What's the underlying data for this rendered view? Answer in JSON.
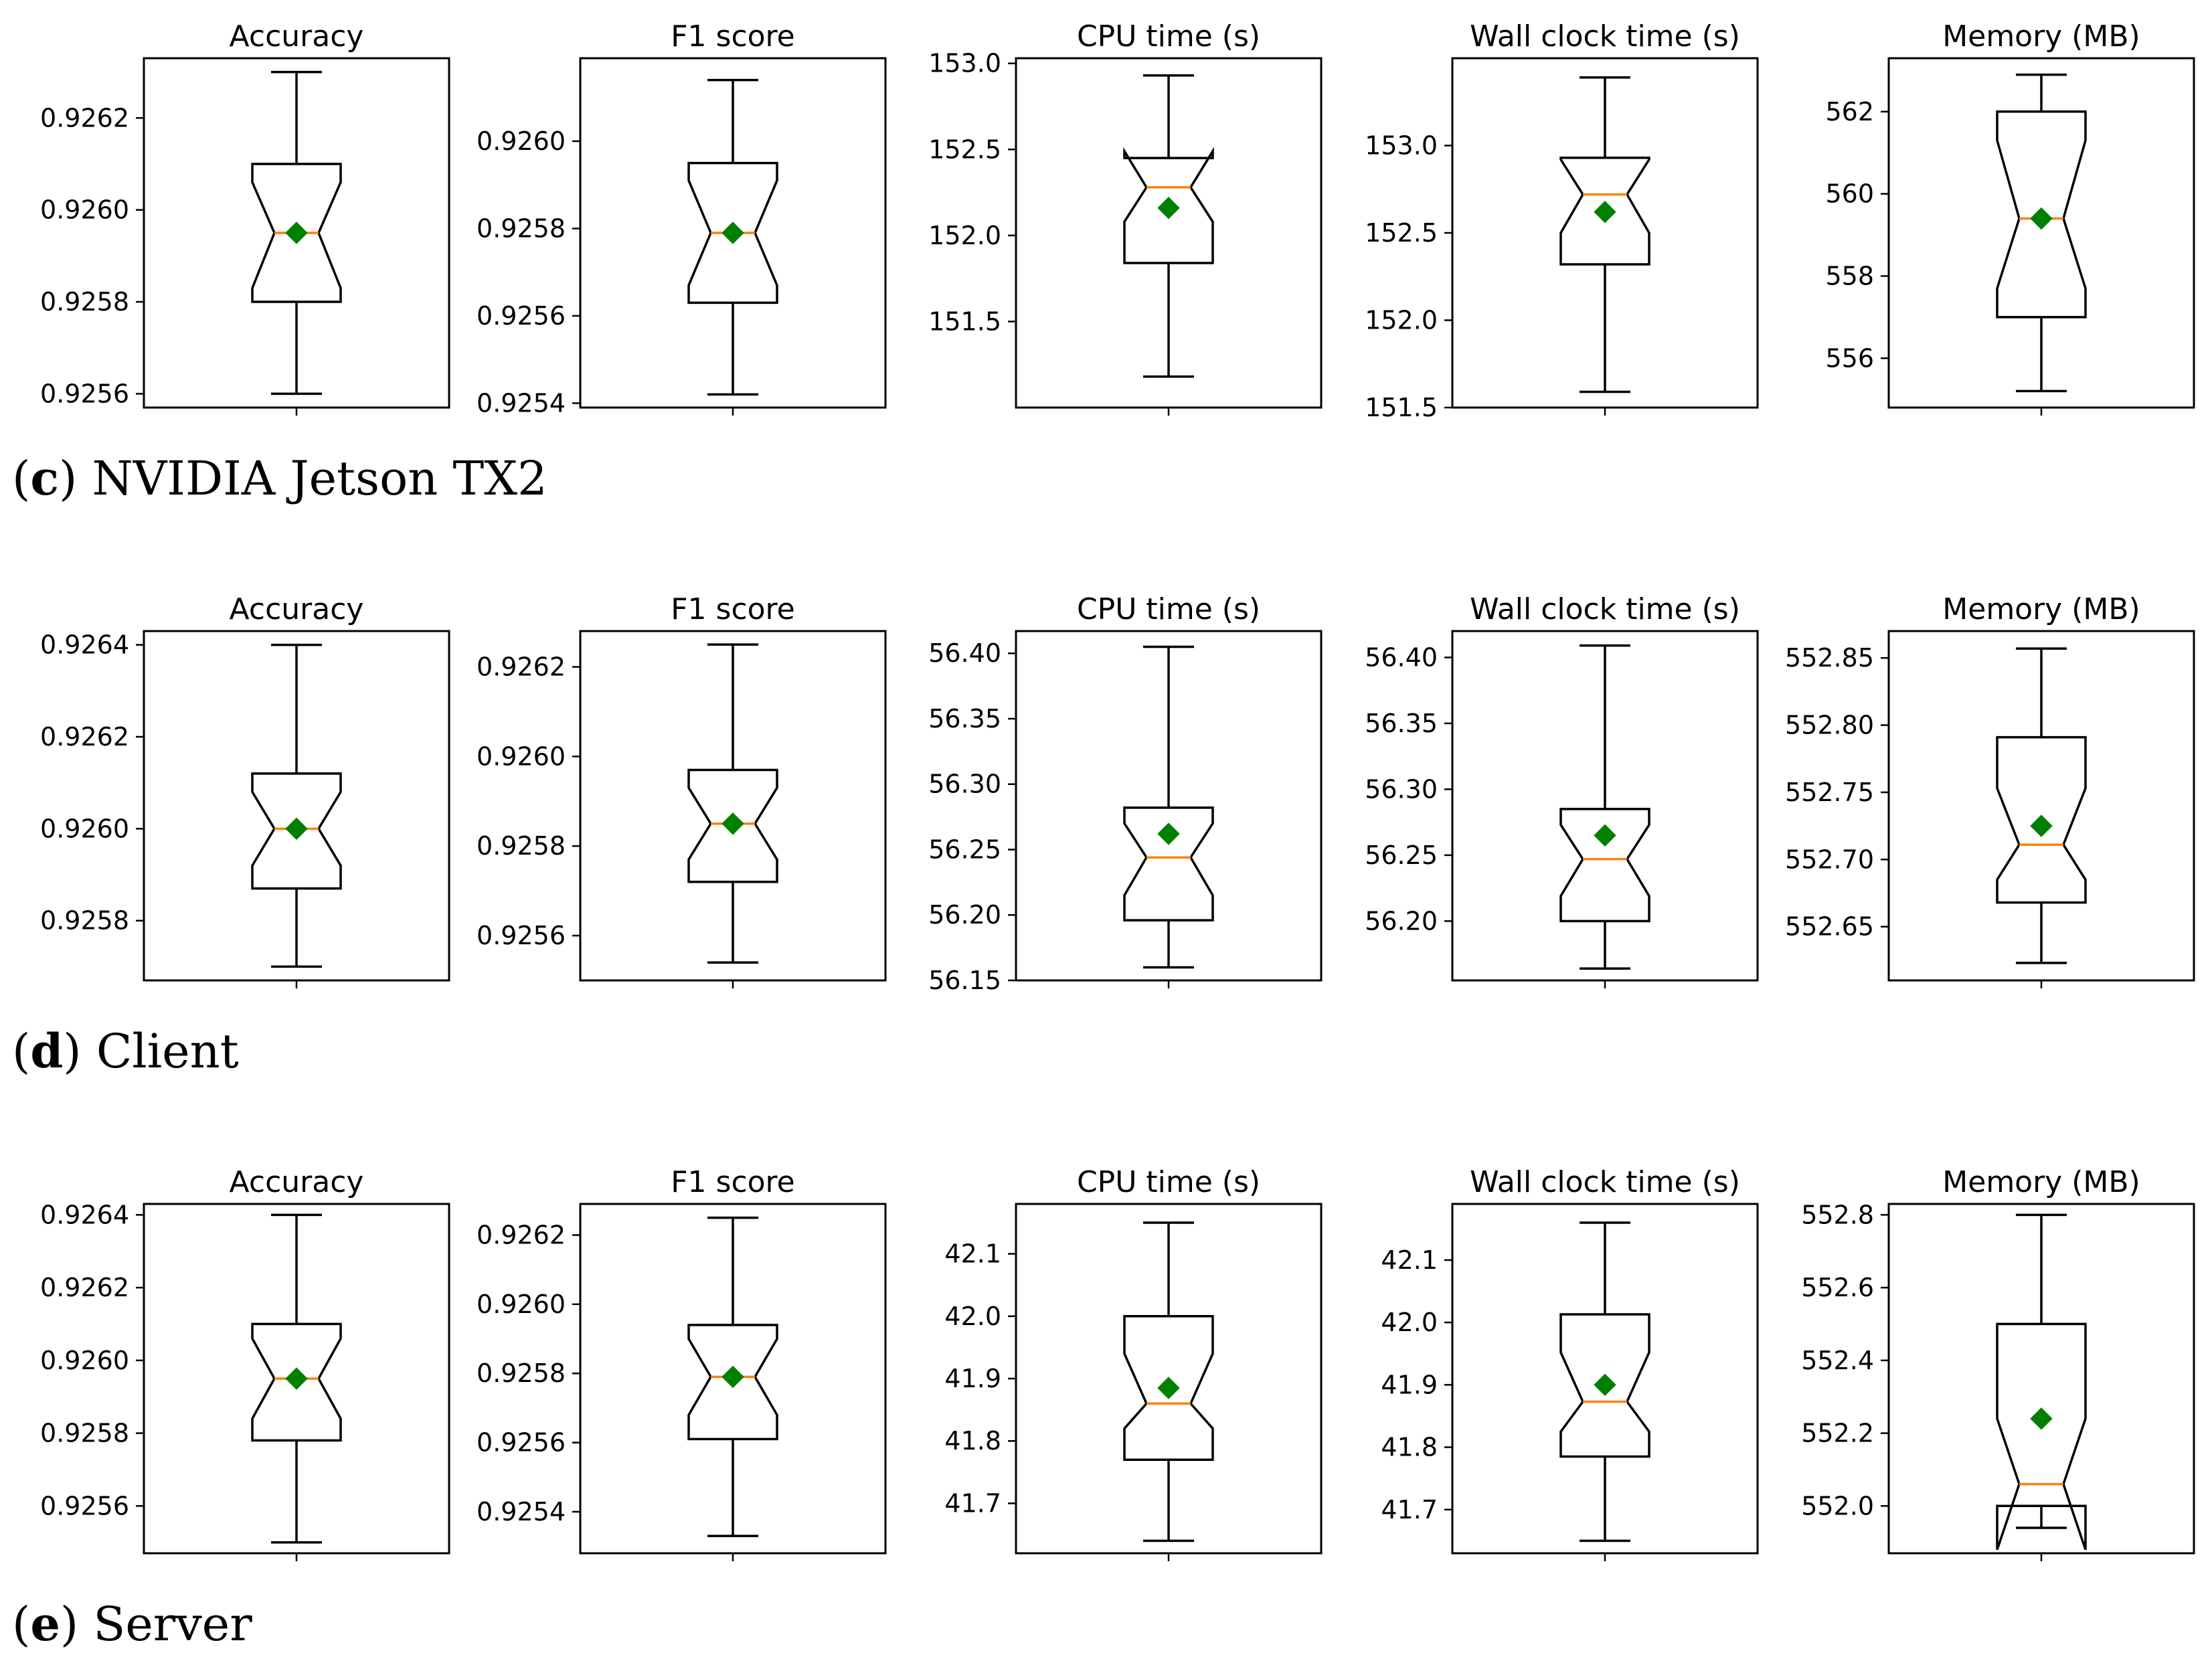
{
  "colors": {
    "box": "#000000",
    "median": "#ff7f0e",
    "mean": "#008000",
    "background": "#ffffff"
  },
  "rows": [
    {
      "letter": "c",
      "caption": "NVIDIA Jetson TX2"
    },
    {
      "letter": "d",
      "caption": "Client"
    },
    {
      "letter": "e",
      "caption": "Server"
    }
  ],
  "chart_data": [
    {
      "type": "boxplot",
      "title": "Accuracy",
      "row": "c",
      "ylim": [
        0.92557,
        0.92633
      ],
      "ticks": [
        0.9256,
        0.9258,
        0.926,
        0.9262
      ],
      "tick_format": 4,
      "notched": true,
      "grid": false,
      "xlabel": "",
      "ylabel": "",
      "stats": {
        "whisker_low": 0.9256,
        "q1": 0.9258,
        "median": 0.92595,
        "q3": 0.9261,
        "whisker_high": 0.9263,
        "mean": 0.92595,
        "notch_low": 0.92583,
        "notch_high": 0.92606
      }
    },
    {
      "type": "boxplot",
      "title": "F1 score",
      "row": "c",
      "ylim": [
        0.92539,
        0.92619
      ],
      "ticks": [
        0.9254,
        0.9256,
        0.9258,
        0.926
      ],
      "tick_format": 4,
      "notched": true,
      "grid": false,
      "xlabel": "",
      "ylabel": "",
      "stats": {
        "whisker_low": 0.92542,
        "q1": 0.92563,
        "median": 0.92579,
        "q3": 0.92595,
        "whisker_high": 0.92614,
        "mean": 0.92579,
        "notch_low": 0.92567,
        "notch_high": 0.92591
      }
    },
    {
      "type": "boxplot",
      "title": "CPU time (s)",
      "row": "c",
      "ylim": [
        151.0,
        153.03
      ],
      "ticks": [
        151.5,
        152.0,
        152.5,
        153.0
      ],
      "tick_format": 1,
      "notched": true,
      "grid": false,
      "xlabel": "",
      "ylabel": "",
      "stats": {
        "whisker_low": 151.18,
        "q1": 151.84,
        "median": 152.28,
        "q3": 152.45,
        "whisker_high": 152.93,
        "mean": 152.16,
        "notch_low": 152.08,
        "notch_high": 152.49
      }
    },
    {
      "type": "boxplot",
      "title": "Wall clock time (s)",
      "row": "c",
      "ylim": [
        151.5,
        153.5
      ],
      "ticks": [
        151.5,
        152.0,
        152.5,
        153.0
      ],
      "tick_format": 1,
      "notched": true,
      "grid": false,
      "xlabel": "",
      "ylabel": "",
      "stats": {
        "whisker_low": 151.59,
        "q1": 152.32,
        "median": 152.72,
        "q3": 152.93,
        "whisker_high": 153.39,
        "mean": 152.62,
        "notch_low": 152.5,
        "notch_high": 152.92
      }
    },
    {
      "type": "boxplot",
      "title": "Memory (MB)",
      "row": "c",
      "ylim": [
        554.8,
        563.3
      ],
      "ticks": [
        556,
        558,
        560,
        562
      ],
      "tick_format": 0,
      "notched": true,
      "grid": false,
      "xlabel": "",
      "ylabel": "",
      "stats": {
        "whisker_low": 555.2,
        "q1": 557.0,
        "median": 559.4,
        "q3": 562.0,
        "whisker_high": 562.9,
        "mean": 559.4,
        "notch_low": 557.7,
        "notch_high": 561.3
      }
    },
    {
      "type": "boxplot",
      "title": "Accuracy",
      "row": "d",
      "ylim": [
        0.92567,
        0.92643
      ],
      "ticks": [
        0.9258,
        0.926,
        0.9262,
        0.9264
      ],
      "tick_format": 4,
      "notched": true,
      "grid": false,
      "xlabel": "",
      "ylabel": "",
      "stats": {
        "whisker_low": 0.9257,
        "q1": 0.92587,
        "median": 0.926,
        "q3": 0.92612,
        "whisker_high": 0.9264,
        "mean": 0.926,
        "notch_low": 0.92592,
        "notch_high": 0.92608
      }
    },
    {
      "type": "boxplot",
      "title": "F1 score",
      "row": "d",
      "ylim": [
        0.9255,
        0.92628
      ],
      "ticks": [
        0.9256,
        0.9258,
        0.926,
        0.9262
      ],
      "tick_format": 4,
      "notched": true,
      "grid": false,
      "xlabel": "",
      "ylabel": "",
      "stats": {
        "whisker_low": 0.92554,
        "q1": 0.92572,
        "median": 0.92585,
        "q3": 0.92597,
        "whisker_high": 0.92625,
        "mean": 0.92585,
        "notch_low": 0.92577,
        "notch_high": 0.92593
      }
    },
    {
      "type": "boxplot",
      "title": "CPU time (s)",
      "row": "d",
      "ylim": [
        56.15,
        56.417
      ],
      "ticks": [
        56.15,
        56.2,
        56.25,
        56.3,
        56.35,
        56.4
      ],
      "tick_format": 2,
      "notched": true,
      "grid": false,
      "xlabel": "",
      "ylabel": "",
      "stats": {
        "whisker_low": 56.16,
        "q1": 56.196,
        "median": 56.244,
        "q3": 56.282,
        "whisker_high": 56.405,
        "mean": 56.262,
        "notch_low": 56.215,
        "notch_high": 56.27
      }
    },
    {
      "type": "boxplot",
      "title": "Wall clock time (s)",
      "row": "d",
      "ylim": [
        56.155,
        56.42
      ],
      "ticks": [
        56.2,
        56.25,
        56.3,
        56.35,
        56.4
      ],
      "tick_format": 2,
      "notched": true,
      "grid": false,
      "xlabel": "",
      "ylabel": "",
      "stats": {
        "whisker_low": 56.164,
        "q1": 56.2,
        "median": 56.247,
        "q3": 56.285,
        "whisker_high": 56.409,
        "mean": 56.265,
        "notch_low": 56.219,
        "notch_high": 56.273
      }
    },
    {
      "type": "boxplot",
      "title": "Memory (MB)",
      "row": "d",
      "ylim": [
        552.61,
        552.87
      ],
      "ticks": [
        552.65,
        552.7,
        552.75,
        552.8,
        552.85
      ],
      "tick_format": 2,
      "notched": true,
      "grid": false,
      "xlabel": "",
      "ylabel": "",
      "stats": {
        "whisker_low": 552.623,
        "q1": 552.668,
        "median": 552.711,
        "q3": 552.791,
        "whisker_high": 552.857,
        "mean": 552.725,
        "notch_low": 552.685,
        "notch_high": 552.753
      }
    },
    {
      "type": "boxplot",
      "title": "Accuracy",
      "row": "e",
      "ylim": [
        0.92547,
        0.92643
      ],
      "ticks": [
        0.9256,
        0.9258,
        0.926,
        0.9262,
        0.9264
      ],
      "tick_format": 4,
      "notched": true,
      "grid": false,
      "xlabel": "",
      "ylabel": "",
      "stats": {
        "whisker_low": 0.9255,
        "q1": 0.92578,
        "median": 0.92595,
        "q3": 0.9261,
        "whisker_high": 0.9264,
        "mean": 0.92595,
        "notch_low": 0.92584,
        "notch_high": 0.92606
      }
    },
    {
      "type": "boxplot",
      "title": "F1 score",
      "row": "e",
      "ylim": [
        0.92528,
        0.92629
      ],
      "ticks": [
        0.9254,
        0.9256,
        0.9258,
        0.926,
        0.9262
      ],
      "tick_format": 4,
      "notched": true,
      "grid": false,
      "xlabel": "",
      "ylabel": "",
      "stats": {
        "whisker_low": 0.92533,
        "q1": 0.92561,
        "median": 0.92579,
        "q3": 0.92594,
        "whisker_high": 0.92625,
        "mean": 0.92579,
        "notch_low": 0.92568,
        "notch_high": 0.9259
      }
    },
    {
      "type": "boxplot",
      "title": "CPU time (s)",
      "row": "e",
      "ylim": [
        41.62,
        42.18
      ],
      "ticks": [
        41.7,
        41.8,
        41.9,
        42.0,
        42.1
      ],
      "tick_format": 1,
      "notched": true,
      "grid": false,
      "xlabel": "",
      "ylabel": "",
      "stats": {
        "whisker_low": 41.64,
        "q1": 41.77,
        "median": 41.86,
        "q3": 42.0,
        "whisker_high": 42.15,
        "mean": 41.885,
        "notch_low": 41.82,
        "notch_high": 41.94
      }
    },
    {
      "type": "boxplot",
      "title": "Wall clock time (s)",
      "row": "e",
      "ylim": [
        41.63,
        42.19
      ],
      "ticks": [
        41.7,
        41.8,
        41.9,
        42.0,
        42.1
      ],
      "tick_format": 1,
      "notched": true,
      "grid": false,
      "xlabel": "",
      "ylabel": "",
      "stats": {
        "whisker_low": 41.65,
        "q1": 41.785,
        "median": 41.873,
        "q3": 42.013,
        "whisker_high": 42.16,
        "mean": 41.9,
        "notch_low": 41.825,
        "notch_high": 41.952
      }
    },
    {
      "type": "boxplot",
      "title": "Memory (MB)",
      "row": "e",
      "ylim": [
        551.87,
        552.83
      ],
      "ticks": [
        552.0,
        552.2,
        552.4,
        552.6,
        552.8
      ],
      "tick_format": 1,
      "notched": true,
      "grid": false,
      "xlabel": "",
      "ylabel": "",
      "stats": {
        "whisker_low": 551.94,
        "q1": 552.0,
        "median": 552.06,
        "q3": 552.5,
        "whisker_high": 552.8,
        "mean": 552.24,
        "notch_low": 551.88,
        "notch_high": 552.24
      }
    }
  ]
}
